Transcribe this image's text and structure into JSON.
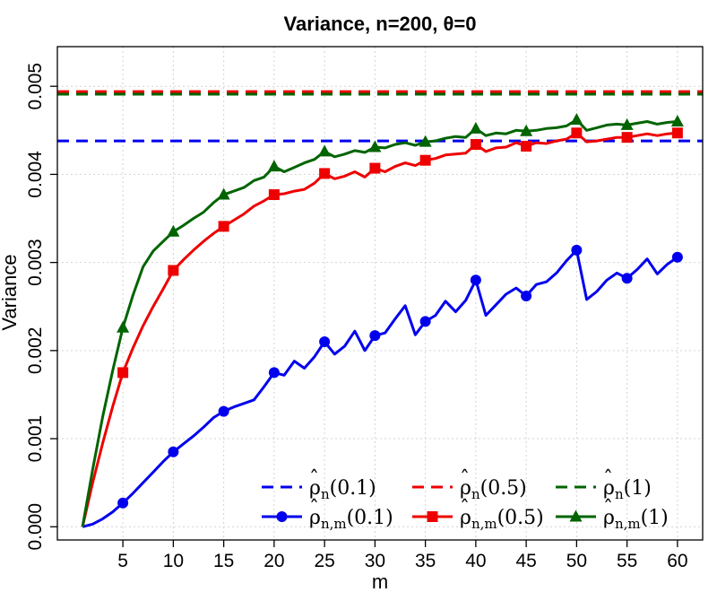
{
  "chart_data": {
    "type": "line",
    "title": "Variance, n=200, θ=0",
    "xlabel": "m",
    "ylabel": "Variance",
    "xlim": [
      -1.5,
      62.5
    ],
    "ylim": [
      -0.00015,
      0.00545
    ],
    "x_ticks": [
      5,
      10,
      15,
      20,
      25,
      30,
      35,
      40,
      45,
      50,
      55,
      60
    ],
    "y_ticks": [
      0.0,
      0.001,
      0.002,
      0.003,
      0.004,
      0.005
    ],
    "y_tick_labels": [
      "0.000",
      "0.001",
      "0.002",
      "0.003",
      "0.004",
      "0.005"
    ],
    "grid": true,
    "legend_position": "bottom-right",
    "hlines": [
      {
        "label_base": "ρ",
        "label_sub": "n",
        "label_arg": "(0.1)",
        "value": 0.00438,
        "color": "#0000EE"
      },
      {
        "label_base": "ρ",
        "label_sub": "n",
        "label_arg": "(0.5)",
        "value": 0.00494,
        "color": "#EE0000"
      },
      {
        "label_base": "ρ",
        "label_sub": "n",
        "label_arg": "(1)",
        "value": 0.00491,
        "color": "#006400"
      }
    ],
    "series": [
      {
        "label_base": "ρ",
        "label_sub": "n,m",
        "label_arg": "(0.1)",
        "color": "#0000EE",
        "marker": "circle",
        "x": [
          1,
          2,
          3,
          4,
          5,
          6,
          7,
          8,
          9,
          10,
          11,
          12,
          13,
          14,
          15,
          16,
          17,
          18,
          19,
          20,
          21,
          22,
          23,
          24,
          25,
          26,
          27,
          28,
          29,
          30,
          31,
          32,
          33,
          34,
          35,
          36,
          37,
          38,
          39,
          40,
          41,
          42,
          43,
          44,
          45,
          46,
          47,
          48,
          49,
          50,
          51,
          52,
          53,
          54,
          55,
          56,
          57,
          58,
          59,
          60
        ],
        "values": [
          0.0,
          3e-05,
          9e-05,
          0.00017,
          0.00027,
          0.00038,
          0.0005,
          0.00062,
          0.00074,
          0.00085,
          0.00094,
          0.00103,
          0.00113,
          0.00124,
          0.00131,
          0.00136,
          0.0014,
          0.00144,
          0.00159,
          0.00175,
          0.00172,
          0.00188,
          0.0018,
          0.00193,
          0.0021,
          0.00196,
          0.00205,
          0.00222,
          0.002,
          0.00217,
          0.0022,
          0.00236,
          0.00251,
          0.00218,
          0.00233,
          0.0024,
          0.00256,
          0.00244,
          0.00257,
          0.0028,
          0.0024,
          0.00252,
          0.00264,
          0.00271,
          0.00262,
          0.00275,
          0.00278,
          0.00288,
          0.00302,
          0.00314,
          0.00258,
          0.00267,
          0.0028,
          0.00288,
          0.00282,
          0.00292,
          0.00304,
          0.00287,
          0.00298,
          0.00306
        ],
        "marker_x": [
          5,
          10,
          15,
          20,
          25,
          30,
          35,
          40,
          45,
          50,
          55,
          60
        ]
      },
      {
        "label_base": "ρ",
        "label_sub": "n,m",
        "label_arg": "(0.5)",
        "color": "#EE0000",
        "marker": "square",
        "x": [
          1,
          2,
          3,
          4,
          5,
          6,
          7,
          8,
          9,
          10,
          11,
          12,
          13,
          14,
          15,
          16,
          17,
          18,
          19,
          20,
          21,
          22,
          23,
          24,
          25,
          26,
          27,
          28,
          29,
          30,
          31,
          32,
          33,
          34,
          35,
          36,
          37,
          38,
          39,
          40,
          41,
          42,
          43,
          44,
          45,
          46,
          47,
          48,
          49,
          50,
          51,
          52,
          53,
          54,
          55,
          56,
          57,
          58,
          59,
          60
        ],
        "values": [
          0.0,
          0.0005,
          0.00095,
          0.00137,
          0.00175,
          0.00203,
          0.00228,
          0.0025,
          0.0027,
          0.00291,
          0.00303,
          0.00314,
          0.00324,
          0.00333,
          0.00341,
          0.00348,
          0.00355,
          0.00364,
          0.0037,
          0.00377,
          0.00378,
          0.00381,
          0.00383,
          0.0039,
          0.00401,
          0.00395,
          0.00398,
          0.00403,
          0.00397,
          0.00407,
          0.00403,
          0.00409,
          0.00413,
          0.0041,
          0.00416,
          0.00418,
          0.00422,
          0.00423,
          0.00424,
          0.00434,
          0.00426,
          0.0043,
          0.00431,
          0.00436,
          0.00432,
          0.00436,
          0.00435,
          0.00438,
          0.0044,
          0.00447,
          0.00437,
          0.00438,
          0.0044,
          0.00442,
          0.00442,
          0.00444,
          0.00446,
          0.00444,
          0.00446,
          0.00447
        ],
        "marker_x": [
          5,
          10,
          15,
          20,
          25,
          30,
          35,
          40,
          45,
          50,
          55,
          60
        ]
      },
      {
        "label_base": "ρ",
        "label_sub": "n,m",
        "label_arg": "(1)",
        "color": "#006400",
        "marker": "triangle",
        "x": [
          1,
          2,
          3,
          4,
          5,
          6,
          7,
          8,
          9,
          10,
          11,
          12,
          13,
          14,
          15,
          16,
          17,
          18,
          19,
          20,
          21,
          22,
          23,
          24,
          25,
          26,
          27,
          28,
          29,
          30,
          31,
          32,
          33,
          34,
          35,
          36,
          37,
          38,
          39,
          40,
          41,
          42,
          43,
          44,
          45,
          46,
          47,
          48,
          49,
          50,
          51,
          52,
          53,
          54,
          55,
          56,
          57,
          58,
          59,
          60
        ],
        "values": [
          0.0,
          0.00065,
          0.00125,
          0.00178,
          0.00226,
          0.00263,
          0.00295,
          0.00313,
          0.00324,
          0.00335,
          0.00342,
          0.0035,
          0.00357,
          0.00368,
          0.00377,
          0.00381,
          0.00385,
          0.00393,
          0.00397,
          0.00409,
          0.00403,
          0.00408,
          0.00413,
          0.00417,
          0.00426,
          0.0042,
          0.00423,
          0.00427,
          0.00425,
          0.00431,
          0.0043,
          0.00434,
          0.00436,
          0.00433,
          0.00437,
          0.00438,
          0.00441,
          0.00443,
          0.00442,
          0.00452,
          0.00444,
          0.00447,
          0.00446,
          0.0045,
          0.00449,
          0.0045,
          0.00452,
          0.00453,
          0.00455,
          0.00462,
          0.0045,
          0.00453,
          0.00456,
          0.00457,
          0.00456,
          0.00458,
          0.0046,
          0.00457,
          0.00459,
          0.0046
        ],
        "marker_x": [
          5,
          10,
          15,
          20,
          25,
          30,
          35,
          40,
          45,
          50,
          55,
          60
        ]
      }
    ]
  }
}
